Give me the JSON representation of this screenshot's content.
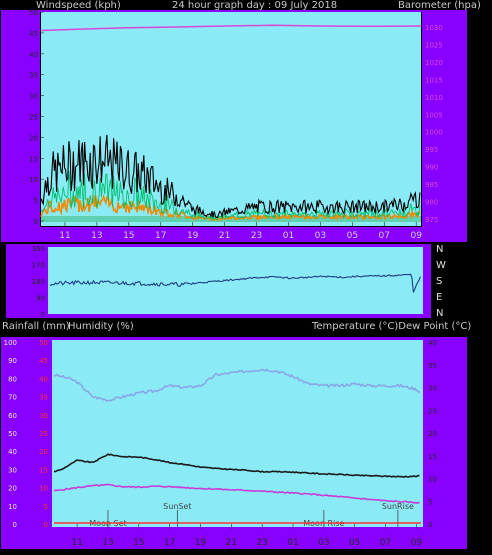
{
  "header": {
    "windspeed_label": "Windspeed (kph)",
    "title": "24 hour graph day : 09 July 2018",
    "barometer_label": "Barometer (hpa)"
  },
  "lower_header": {
    "rainfall_label": "Rainfall (mm)",
    "humidity_label": "Humidity (%)",
    "temp_dew_label": "Temperature (°C)Dew Point (°C)"
  },
  "colors": {
    "panel_bg": "#8aeaf6",
    "frame": "#8800ff",
    "gust": "#000000",
    "wind": "#00c070",
    "wind_orange": "#f08a00",
    "barometer": "#d846d8",
    "direction": "#1f3d82",
    "humidity": "#8aa6e6",
    "temperature": "#1a1a1a",
    "dewpoint": "#c83cd8",
    "rain_axis_text": "#ff3030",
    "axis_text": "#2a2a2a"
  },
  "chart_data": [
    {
      "type": "line",
      "name": "wind-barometer",
      "x_ticks": [
        "11",
        "13",
        "15",
        "17",
        "19",
        "21",
        "23",
        "01",
        "03",
        "05",
        "07",
        "09"
      ],
      "left_axis": {
        "label": "Windspeed (kph)",
        "ylim": [
          0,
          50
        ],
        "ticks": [
          0,
          5,
          10,
          15,
          20,
          25,
          30,
          35,
          40,
          45,
          50
        ]
      },
      "right_axis": {
        "label": "Barometer (hpa)",
        "ylim": [
          975,
          1030
        ],
        "ticks": [
          975,
          980,
          985,
          990,
          995,
          1000,
          1005,
          1010,
          1015,
          1020,
          1025,
          1030
        ]
      },
      "gust_max_profile": {
        "x": [
          9.5,
          10,
          11,
          12,
          13,
          14,
          15,
          16,
          17,
          17.5,
          18,
          18.5,
          19,
          20,
          20.5,
          21,
          22,
          23,
          24,
          25,
          26,
          27,
          28,
          29,
          30,
          31,
          32,
          33,
          33.3
        ],
        "y": [
          8,
          16,
          19,
          21,
          22,
          20,
          18,
          16,
          12,
          10,
          9,
          7,
          4,
          3,
          2,
          3,
          4,
          5,
          5,
          5,
          5,
          5,
          5,
          5,
          5,
          5,
          6,
          8,
          9
        ]
      },
      "barometer": {
        "x": [
          9.5,
          12,
          15,
          18,
          21,
          24,
          27,
          30,
          33.3
        ],
        "y": [
          1029,
          1029.4,
          1029.8,
          1030,
          1030.3,
          1030.5,
          1030.3,
          1030.2,
          1030.3
        ]
      }
    },
    {
      "type": "line",
      "name": "wind-direction",
      "right_labels": [
        "N",
        "W",
        "S",
        "E",
        "N"
      ],
      "left_ticks": [
        360,
        270,
        180,
        90,
        0
      ],
      "direction": {
        "x": [
          9.5,
          12,
          15,
          18,
          19,
          21,
          23,
          24,
          25,
          27,
          28.5,
          29,
          31,
          32.7,
          32.8,
          33.3
        ],
        "y": [
          165,
          172,
          168,
          160,
          170,
          185,
          200,
          202,
          195,
          205,
          200,
          205,
          208,
          215,
          120,
          208
        ]
      }
    },
    {
      "type": "line",
      "name": "humidity-temperature",
      "sun_labels": [
        "SunSet",
        "SunRise"
      ],
      "moon_labels": [
        "Moon Set",
        "Moon Rise"
      ],
      "humidity_axis": {
        "ticks": [
          0,
          10,
          20,
          30,
          40,
          50,
          60,
          70,
          80,
          90,
          100
        ]
      },
      "rain_axis": {
        "ticks": [
          0,
          5,
          10,
          15,
          20,
          25,
          30,
          35,
          40,
          45,
          50
        ]
      },
      "temp_axis": {
        "ticks": [
          0,
          5,
          10,
          15,
          20,
          25,
          30,
          35,
          40
        ]
      },
      "humidity": {
        "x": [
          9.5,
          10.5,
          11,
          12,
          13,
          14,
          15,
          16,
          17,
          18,
          19,
          20,
          21,
          22,
          23,
          24,
          25,
          26,
          27,
          28,
          29,
          30,
          31,
          32,
          33,
          33.3
        ],
        "y": [
          82,
          80,
          78,
          70,
          68,
          70,
          72,
          73,
          76,
          75,
          76,
          82,
          83,
          84,
          85,
          84,
          81,
          77,
          76,
          76,
          77,
          76,
          76,
          76,
          74,
          72
        ]
      },
      "temperature": {
        "x": [
          9.5,
          10,
          11,
          12,
          13,
          14,
          15,
          16,
          17,
          18,
          19,
          20,
          21,
          22,
          23,
          24,
          25,
          26,
          27,
          28,
          29,
          30,
          31,
          32,
          33,
          33.3
        ],
        "y": [
          11.5,
          12,
          14,
          13.5,
          15.3,
          14.8,
          14.7,
          14.2,
          13.5,
          13.1,
          12.5,
          12.2,
          12,
          11.8,
          11.5,
          11.5,
          11.4,
          11.2,
          11,
          10.9,
          10.7,
          10.6,
          10.5,
          10.4,
          10.5,
          10.6
        ]
      },
      "dewpoint": {
        "x": [
          9.5,
          10,
          11,
          12,
          13,
          14,
          15,
          16,
          17,
          18,
          19,
          20,
          21,
          22,
          23,
          24,
          25,
          26,
          27,
          28,
          29,
          30,
          31,
          32,
          33,
          33.3
        ],
        "y": [
          7.3,
          7.5,
          8,
          8.4,
          8.6,
          8.2,
          8.1,
          8.3,
          8.2,
          8,
          7.8,
          7.7,
          7.5,
          7.4,
          7.2,
          7,
          6.8,
          6.6,
          6.3,
          6,
          5.7,
          5.4,
          5.1,
          4.9,
          4.7,
          4.5
        ]
      },
      "rainfall": {
        "x": [
          9.5,
          33.3
        ],
        "y": [
          0,
          0
        ]
      }
    }
  ]
}
